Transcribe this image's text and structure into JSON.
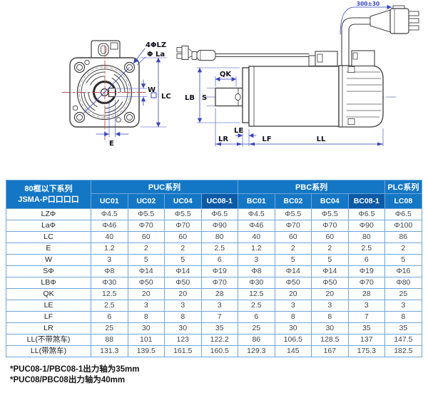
{
  "diagram": {
    "labels": {
      "bolt_holes": "4ΦLZ",
      "flange_circle": "Φ La",
      "key_width": "W",
      "frame_size": "LC",
      "key_offset": "E",
      "cable_length": "300±30",
      "key_length": "QK",
      "shaft_dia": "S",
      "pilot_dia": "LB",
      "shoulder": "LE",
      "shaft_length": "LR",
      "flange_thickness": "LF",
      "body_length": "LL"
    }
  },
  "table": {
    "corner_header_line1": "80框以下系列",
    "corner_header_line2": "JSMA-P口口口口",
    "series_groups": [
      {
        "label": "PUC系列",
        "span": 4
      },
      {
        "label": "PBC系列",
        "span": 4
      },
      {
        "label": "PLC系列",
        "span": 1
      }
    ],
    "columns": [
      {
        "label": "UC01",
        "highlight": false
      },
      {
        "label": "UC02",
        "highlight": false
      },
      {
        "label": "UC04",
        "highlight": false
      },
      {
        "label": "UC08-1",
        "highlight": true
      },
      {
        "label": "BC01",
        "highlight": false
      },
      {
        "label": "BC02",
        "highlight": false
      },
      {
        "label": "BC04",
        "highlight": false
      },
      {
        "label": "BC08-1",
        "highlight": true
      },
      {
        "label": "LC08",
        "highlight": false
      }
    ],
    "rows": [
      {
        "label": "LZΦ",
        "values": [
          "Φ4.5",
          "Φ5.5",
          "Φ5.5",
          "Φ6.5",
          "Φ4.5",
          "Φ5.5",
          "Φ5.5",
          "Φ6.5",
          "Φ6.5"
        ]
      },
      {
        "label": "LaΦ",
        "values": [
          "Φ46",
          "Φ70",
          "Φ70",
          "Φ90",
          "Φ46",
          "Φ70",
          "Φ70",
          "Φ90",
          "Φ100"
        ]
      },
      {
        "label": "LC",
        "values": [
          "40",
          "60",
          "60",
          "80",
          "40",
          "60",
          "60",
          "80",
          "86"
        ]
      },
      {
        "label": "E",
        "values": [
          "1.2",
          "2",
          "2",
          "2.5",
          "1.2",
          "2",
          "2",
          "2.5",
          "2"
        ]
      },
      {
        "label": "W",
        "values": [
          "3",
          "5",
          "5",
          "6",
          "3",
          "5",
          "5",
          "6",
          "5"
        ]
      },
      {
        "label": "SΦ",
        "values": [
          "Φ8",
          "Φ14",
          "Φ14",
          "Φ19",
          "Φ8",
          "Φ14",
          "Φ14",
          "Φ19",
          "Φ16"
        ]
      },
      {
        "label": "LBΦ",
        "values": [
          "Φ30",
          "Φ50",
          "Φ50",
          "Φ70",
          "Φ30",
          "Φ50",
          "Φ50",
          "Φ70",
          "Φ80"
        ]
      },
      {
        "label": "QK",
        "values": [
          "12.5",
          "20",
          "20",
          "28",
          "12.5",
          "20",
          "20",
          "28",
          "25"
        ]
      },
      {
        "label": "LE",
        "values": [
          "2.5",
          "3",
          "3",
          "3",
          "2.5",
          "3",
          "3",
          "3",
          "3"
        ]
      },
      {
        "label": "LF",
        "values": [
          "6",
          "8",
          "8",
          "7",
          "6",
          "8",
          "8",
          "7",
          "8"
        ]
      },
      {
        "label": "LR",
        "values": [
          "25",
          "30",
          "30",
          "35",
          "25",
          "30",
          "30",
          "35",
          "35"
        ]
      },
      {
        "label": "LL(不带煞车)",
        "values": [
          "88",
          "101",
          "123",
          "122.2",
          "86",
          "106.5",
          "128.5",
          "137",
          "147.5"
        ]
      },
      {
        "label": "LL(带煞车)",
        "values": [
          "131.3",
          "139.5",
          "161.5",
          "160.5",
          "129.3",
          "145",
          "167",
          "175.3",
          "182.5"
        ]
      }
    ]
  },
  "footnotes": [
    "*PUC08-1/PBC08-1出力轴为35mm",
    "*PUC08/PBC08出力轴为40mm"
  ],
  "colors": {
    "header_blue": "#1477C6",
    "header_dark_blue": "#0A5AA6",
    "grid_border": "#6FA5D7",
    "dimension_blue": "#3544BF",
    "centerline_red": "#BF4B4B"
  }
}
